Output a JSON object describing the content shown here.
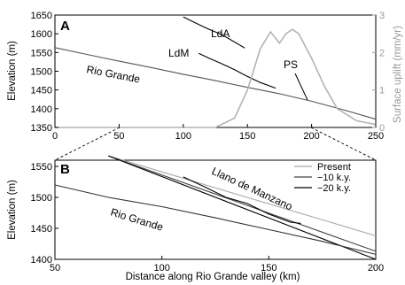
{
  "chart_data": [
    {
      "panel": "A",
      "type": "line",
      "xlim": [
        0,
        250
      ],
      "ylim": [
        1350,
        1650
      ],
      "y2lim": [
        0,
        3
      ],
      "xticks": [
        "0",
        "50",
        "100",
        "150",
        "200",
        "250"
      ],
      "yticks": [
        "1350",
        "1400",
        "1450",
        "1500",
        "1550",
        "1600",
        "1650"
      ],
      "y2ticks": [
        "0",
        "1",
        "2",
        "3"
      ],
      "ylabel": "Elevation (m)",
      "y2label": "Surface uplift (mm/yr)",
      "grid": false,
      "annotations": {
        "rio": "Rio Grande",
        "lda": "LdA",
        "ldm": "LdM",
        "ps": "PS"
      },
      "series": [
        {
          "name": "Rio Grande",
          "color": "#555555",
          "axis": "left",
          "x": [
            0,
            25,
            50,
            75,
            100,
            125,
            150,
            175,
            200,
            225,
            250
          ],
          "y": [
            1563,
            1545,
            1527,
            1510,
            1492,
            1475,
            1457,
            1440,
            1420,
            1397,
            1372
          ]
        },
        {
          "name": "LdA",
          "color": "#000000",
          "axis": "left",
          "x": [
            100,
            110,
            120,
            130,
            140,
            148
          ],
          "y": [
            1645,
            1628,
            1612,
            1598,
            1578,
            1562
          ]
        },
        {
          "name": "LdM",
          "color": "#000000",
          "axis": "left",
          "x": [
            112,
            120,
            130,
            140,
            150,
            160,
            172
          ],
          "y": [
            1548,
            1535,
            1520,
            1504,
            1486,
            1470,
            1455
          ]
        },
        {
          "name": "PS",
          "color": "#b3b3b3",
          "axis": "right",
          "x": [
            0,
            125,
            140,
            150,
            160,
            168,
            175,
            180,
            185,
            190,
            200,
            210,
            220,
            235,
            250
          ],
          "y": [
            0,
            0,
            0.25,
            1.0,
            2.1,
            2.55,
            2.25,
            2.5,
            2.62,
            2.5,
            1.85,
            1.1,
            0.5,
            0.18,
            0.08
          ]
        }
      ]
    },
    {
      "panel": "B",
      "type": "line",
      "xlim": [
        50,
        200
      ],
      "ylim": [
        1400,
        1560
      ],
      "xticks": [
        "50",
        "100",
        "150",
        "200"
      ],
      "yticks": [
        "1400",
        "1450",
        "1500",
        "1550"
      ],
      "xlabel": "Distance along Rio Grande valley (km)",
      "ylabel": "Elevation (m)",
      "grid": false,
      "legend": "top-right",
      "annotations": {
        "llano": "Llano de Manzano",
        "rio": "Rio Grande"
      },
      "series": [
        {
          "name": "Present",
          "color": "#a8a8a8",
          "x": [
            75,
            200
          ],
          "y": [
            1567,
            1438
          ]
        },
        {
          "name": "−10 k.y.",
          "color": "#444444",
          "x": [
            75,
            200
          ],
          "y": [
            1567,
            1413
          ]
        },
        {
          "name": "−20 k.y.",
          "color": "#000000",
          "x": [
            75,
            200
          ],
          "y": [
            1567,
            1400
          ]
        },
        {
          "name": "Rio Grande",
          "color": "#333333",
          "x": [
            50,
            75,
            100,
            125,
            150,
            175,
            200
          ],
          "y": [
            1520,
            1500,
            1485,
            1467,
            1448,
            1429,
            1408
          ]
        },
        {
          "name": "Llano de Manzano",
          "color": "#000000",
          "x": [
            110,
            120,
            130,
            140,
            150,
            160,
            165
          ],
          "y": [
            1533,
            1517,
            1500,
            1490,
            1473,
            1460,
            1458
          ]
        }
      ]
    }
  ]
}
